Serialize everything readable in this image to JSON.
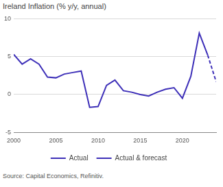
{
  "chart_data": {
    "type": "line",
    "title": "Ireland Inflation (% y/y, annual)",
    "annotations": [
      "Source: Capital Economics, Refinitiv."
    ],
    "x": [
      2000,
      2001,
      2002,
      2003,
      2004,
      2005,
      2006,
      2007,
      2008,
      2009,
      2010,
      2011,
      2012,
      2013,
      2014,
      2015,
      2016,
      2017,
      2018,
      2019,
      2020,
      2021,
      2022,
      2023,
      2024
    ],
    "series": [
      {
        "name": "Actual",
        "color": "#3d2fb8",
        "line_style": "solid",
        "values": [
          5.3,
          4.0,
          4.7,
          4.0,
          2.3,
          2.2,
          2.7,
          2.9,
          3.1,
          -1.7,
          -1.6,
          1.2,
          1.9,
          0.5,
          0.3,
          0.0,
          -0.2,
          0.3,
          0.7,
          0.9,
          -0.5,
          2.4,
          8.1,
          5.2,
          null
        ]
      },
      {
        "name": "Actual & forecast",
        "color": "#3d2fb8",
        "line_style": "dashed",
        "values": [
          null,
          null,
          null,
          null,
          null,
          null,
          null,
          null,
          null,
          null,
          null,
          null,
          null,
          null,
          null,
          null,
          null,
          null,
          null,
          null,
          null,
          null,
          null,
          5.2,
          1.7
        ]
      }
    ],
    "xlim": [
      2000,
      2024
    ],
    "xticks": [
      2000,
      2005,
      2010,
      2015,
      2020
    ],
    "ylim": [
      -5,
      10
    ],
    "yticks": [
      -5,
      0,
      5,
      10
    ],
    "grid": true,
    "legend": "bottom"
  }
}
